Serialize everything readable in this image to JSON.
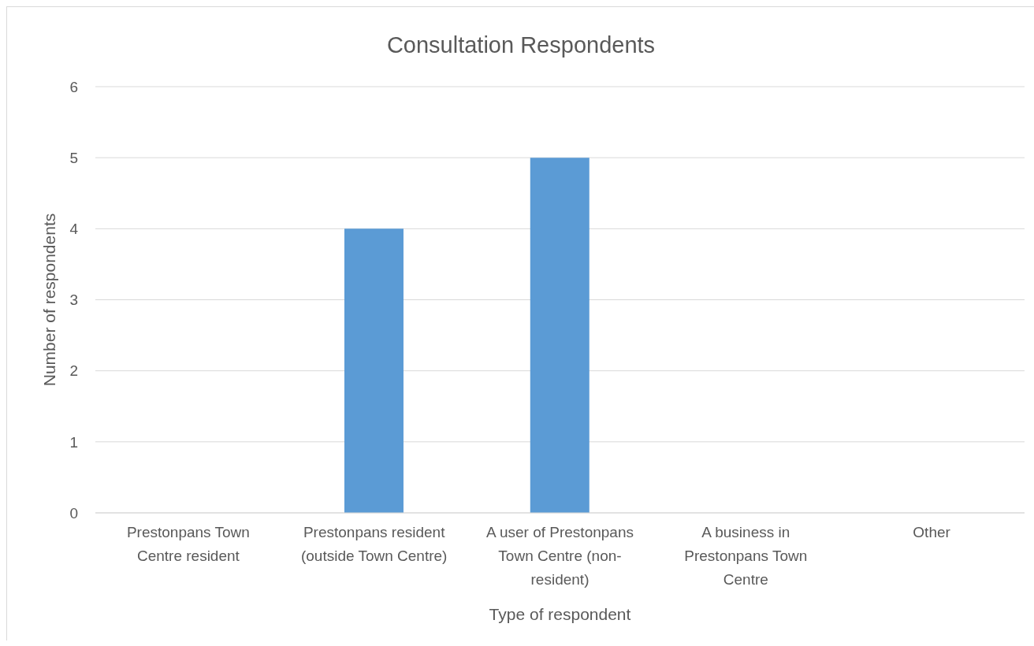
{
  "chart_data": {
    "type": "bar",
    "title": "Consultation Respondents",
    "xlabel": "Type of respondent",
    "ylabel": "Number of respondents",
    "categories": [
      "Prestonpans Town Centre resident",
      "Prestonpans resident (outside Town Centre)",
      "A user of Prestonpans Town Centre (non-resident)",
      "A business in Prestonpans Town Centre",
      "Other"
    ],
    "values": [
      0,
      4,
      5,
      0,
      0
    ],
    "color": "#5b9bd5",
    "ylim": [
      0,
      6
    ],
    "yticks": [
      0,
      1,
      2,
      3,
      4,
      5,
      6
    ],
    "grid": "y"
  }
}
